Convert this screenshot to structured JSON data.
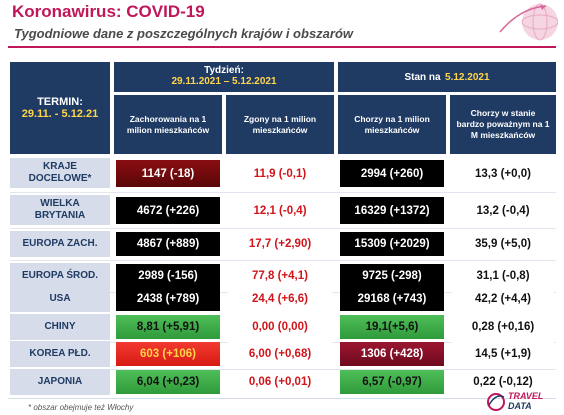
{
  "header": {
    "title": "Koronawirus: COVID-19",
    "subtitle": "Tygodniowe dane z poszczególnych krajów i obszarów"
  },
  "table": {
    "termin_label": "TERMIN:",
    "termin_value": "29.11. - 5.12.21",
    "week_label": "Tydzień:",
    "week_range": "29.11.2021 – 5.12.2021",
    "stan_label": "Stan na",
    "stan_date": "5.12.2021",
    "columns": [
      "Zachorowania na 1 milion mieszkańców",
      "Zgony na 1 milion mieszkańców",
      "Chorzy na 1 milion mieszkańców",
      "Chorzy w stanie bardzo poważnym na 1 M mieszkańców"
    ],
    "rows": [
      {
        "label_1": "KRAJE",
        "label_2": "DOCELOWE*",
        "v1": "1147 (-18)",
        "v2": "11,9 (-0,1)",
        "v3": "2994 (+260)",
        "v4": "13,3 (+0,0)"
      },
      {
        "label_1": "WIELKA",
        "label_2": "BRYTANIA",
        "v1": "4672 (+226)",
        "v2": "12,1 (-0,4)",
        "v3": "16329 (+1372)",
        "v4": "13,2 (-0,4)"
      },
      {
        "label_1": "EUROPA ZACH.",
        "label_2": "",
        "v1": "4867 (+889)",
        "v2": "17,7 (+2,90)",
        "v3": "15309 (+2029)",
        "v4": "35,9 (+5,0)"
      },
      {
        "label_1": "EUROPA ŚROD.",
        "label_2": "",
        "v1": "2989 (-156)",
        "v2": "77,8 (+4,1)",
        "v3": "9725 (-298)",
        "v4": "31,1 (-0,8)"
      },
      {
        "label_1": "USA",
        "label_2": "",
        "v1": "2438 (+789)",
        "v2": "24,4 (+6,6)",
        "v3": "29168 (+743)",
        "v4": "42,2 (+4,4)"
      },
      {
        "label_1": "CHINY",
        "label_2": "",
        "v1": "8,81 (+5,91)",
        "v2": "0,00 (0,00)",
        "v3": "19,1(+5,6)",
        "v4": "0,28 (+0,16)"
      },
      {
        "label_1": "KOREA PŁD.",
        "label_2": "",
        "v1": "603 (+106)",
        "v2": "6,00 (+0,68)",
        "v3": "1306 (+428)",
        "v4": "14,5 (+1,9)"
      },
      {
        "label_1": "JAPONIA",
        "label_2": "",
        "v1": "6,04 (+0,23)",
        "v2": "0,06 (+0,01)",
        "v3": "6,57 (-0,97)",
        "v4": "0,22 (-0,12)"
      }
    ]
  },
  "footnote": "* obszar obejmuje też Włochy",
  "logo": {
    "line1": "TRAVEL",
    "line2": "DATA"
  },
  "colors": {
    "brand_magenta": "#c0165a",
    "header_navy": "#1f3b63",
    "label_bg": "#d6dcea",
    "deaths_red": "#d0141a",
    "cell_black": "#000000",
    "cell_dark_red": "#7a0a0e",
    "cell_green": "#3fae48",
    "cell_bright_red": "#e8281f",
    "cell_maroon": "#861026"
  },
  "icons": [
    "globe-icon",
    "travel-data-logo-icon"
  ]
}
